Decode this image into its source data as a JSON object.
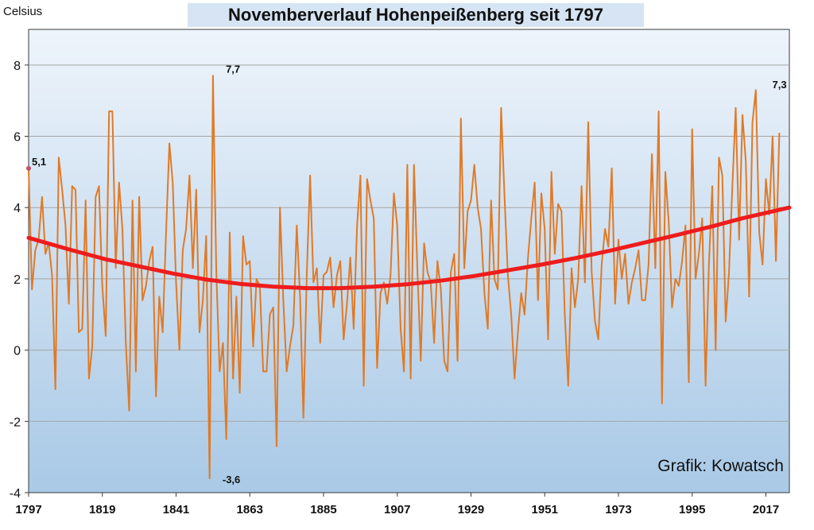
{
  "chart_data": {
    "type": "line",
    "title": "Novemberverlauf Hohenpeißenberg seit 1797",
    "ylabel": "Celsius",
    "xlim": [
      1797,
      2024
    ],
    "ylim": [
      -4,
      9
    ],
    "yticks": [
      -4,
      -2,
      0,
      2,
      4,
      6,
      8
    ],
    "ytick_labels": [
      "-4",
      "-2",
      "0",
      "2",
      "4",
      "6",
      "8"
    ],
    "xticks": [
      1797,
      1819,
      1841,
      1863,
      1885,
      1907,
      1929,
      1951,
      1973,
      1995,
      2017
    ],
    "xtick_labels": [
      "1797",
      "1819",
      "1841",
      "1863",
      "1885",
      "1907",
      "1929",
      "1951",
      "1973",
      "1995",
      "2017"
    ],
    "grid": true,
    "credit": "Grafik: Kowatsch",
    "annotations": [
      {
        "text": "5,1",
        "x": 1797,
        "y": 5.1
      },
      {
        "text": "7,7",
        "x": 1853,
        "y": 7.7
      },
      {
        "text": "-3,6",
        "x": 1852,
        "y": -3.6
      },
      {
        "text": "7,3",
        "x": 2017,
        "y": 7.3
      }
    ],
    "colors": {
      "series": "#e07a26",
      "trend": "#ee1c1c",
      "bg_top": "#eef4fb",
      "bg_bottom": "#a9c9e6",
      "grid": "#a6a6a6"
    },
    "series": [
      {
        "style": "thin-line",
        "x_start": 1797,
        "x_step": 1,
        "values": [
          5.1,
          1.7,
          2.8,
          3.1,
          4.3,
          2.7,
          3.0,
          2.1,
          -1.1,
          5.4,
          4.5,
          3.5,
          1.3,
          4.6,
          4.5,
          0.5,
          0.6,
          4.2,
          -0.8,
          0.1,
          4.3,
          4.6,
          1.8,
          0.4,
          6.7,
          6.7,
          2.3,
          4.7,
          3.4,
          0.2,
          -1.7,
          4.2,
          -0.6,
          4.3,
          1.4,
          1.8,
          2.5,
          2.9,
          -1.3,
          1.5,
          0.5,
          3.3,
          5.8,
          4.7,
          1.9,
          0.0,
          2.8,
          3.4,
          4.9,
          2.3,
          4.5,
          0.5,
          1.4,
          3.2,
          -3.6,
          7.7,
          2.2,
          -0.6,
          0.2,
          -2.5,
          3.3,
          -0.8,
          1.5,
          -1.2,
          3.2,
          2.4,
          2.5,
          0.1,
          2.0,
          1.8,
          -0.6,
          -0.6,
          1.0,
          1.2,
          -2.7,
          4.0,
          1.4,
          -0.6,
          0.1,
          0.7,
          3.5,
          1.5,
          -1.9,
          2.1,
          4.9,
          1.9,
          2.3,
          0.2,
          2.1,
          2.2,
          2.6,
          1.2,
          2.1,
          2.5,
          0.3,
          1.3,
          2.6,
          0.6,
          3.5,
          4.9,
          -1.0,
          4.8,
          4.2,
          3.7,
          -0.5,
          1.6,
          1.9,
          1.3,
          2.1,
          4.4,
          3.5,
          0.6,
          -0.6,
          5.2,
          -0.8,
          5.2,
          2.3,
          -0.3,
          3.0,
          2.2,
          1.9,
          0.2,
          2.5,
          1.7,
          -0.3,
          -0.6,
          2.2,
          2.7,
          -0.3,
          6.5,
          2.3,
          3.9,
          4.2,
          5.2,
          4.0,
          3.4,
          1.6,
          0.6,
          4.2,
          2.0,
          1.7,
          6.8,
          4.3,
          2.1,
          1.0,
          -0.8,
          0.5,
          1.6,
          1.0,
          2.6,
          3.7,
          4.7,
          1.4,
          4.4,
          3.4,
          0.3,
          5.0,
          2.7,
          4.1,
          3.9,
          1.0,
          -1.0,
          2.3,
          1.2,
          2.0,
          4.6,
          1.9,
          6.4,
          2.2,
          0.8,
          0.3,
          2.4,
          3.4,
          2.9,
          5.1,
          1.3,
          3.1,
          2.0,
          2.7,
          1.3,
          1.9,
          2.3,
          2.8,
          1.4,
          1.4,
          2.4,
          5.5,
          2.3,
          6.7,
          -1.5,
          5.0,
          3.6,
          1.2,
          2.0,
          1.8,
          2.5,
          3.5,
          -0.9,
          6.2,
          2.0,
          2.7,
          3.7,
          -1.0,
          2.4,
          4.6,
          0.0,
          5.4,
          4.9,
          0.8,
          2.2,
          4.6,
          6.8,
          3.1,
          6.6,
          5.3,
          1.5,
          6.4,
          7.3,
          3.3,
          2.4,
          4.8,
          3.8,
          6.0,
          2.5,
          6.1
        ]
      },
      {
        "style": "trend",
        "x": [
          1797,
          1810,
          1820,
          1830,
          1840,
          1850,
          1860,
          1870,
          1880,
          1890,
          1900,
          1910,
          1920,
          1930,
          1940,
          1950,
          1960,
          1970,
          1980,
          1990,
          2000,
          2010,
          2024
        ],
        "values": [
          3.15,
          2.8,
          2.55,
          2.35,
          2.15,
          1.98,
          1.86,
          1.78,
          1.74,
          1.74,
          1.78,
          1.85,
          1.95,
          2.08,
          2.24,
          2.4,
          2.58,
          2.78,
          3.0,
          3.22,
          3.45,
          3.7,
          4.0
        ]
      }
    ]
  }
}
